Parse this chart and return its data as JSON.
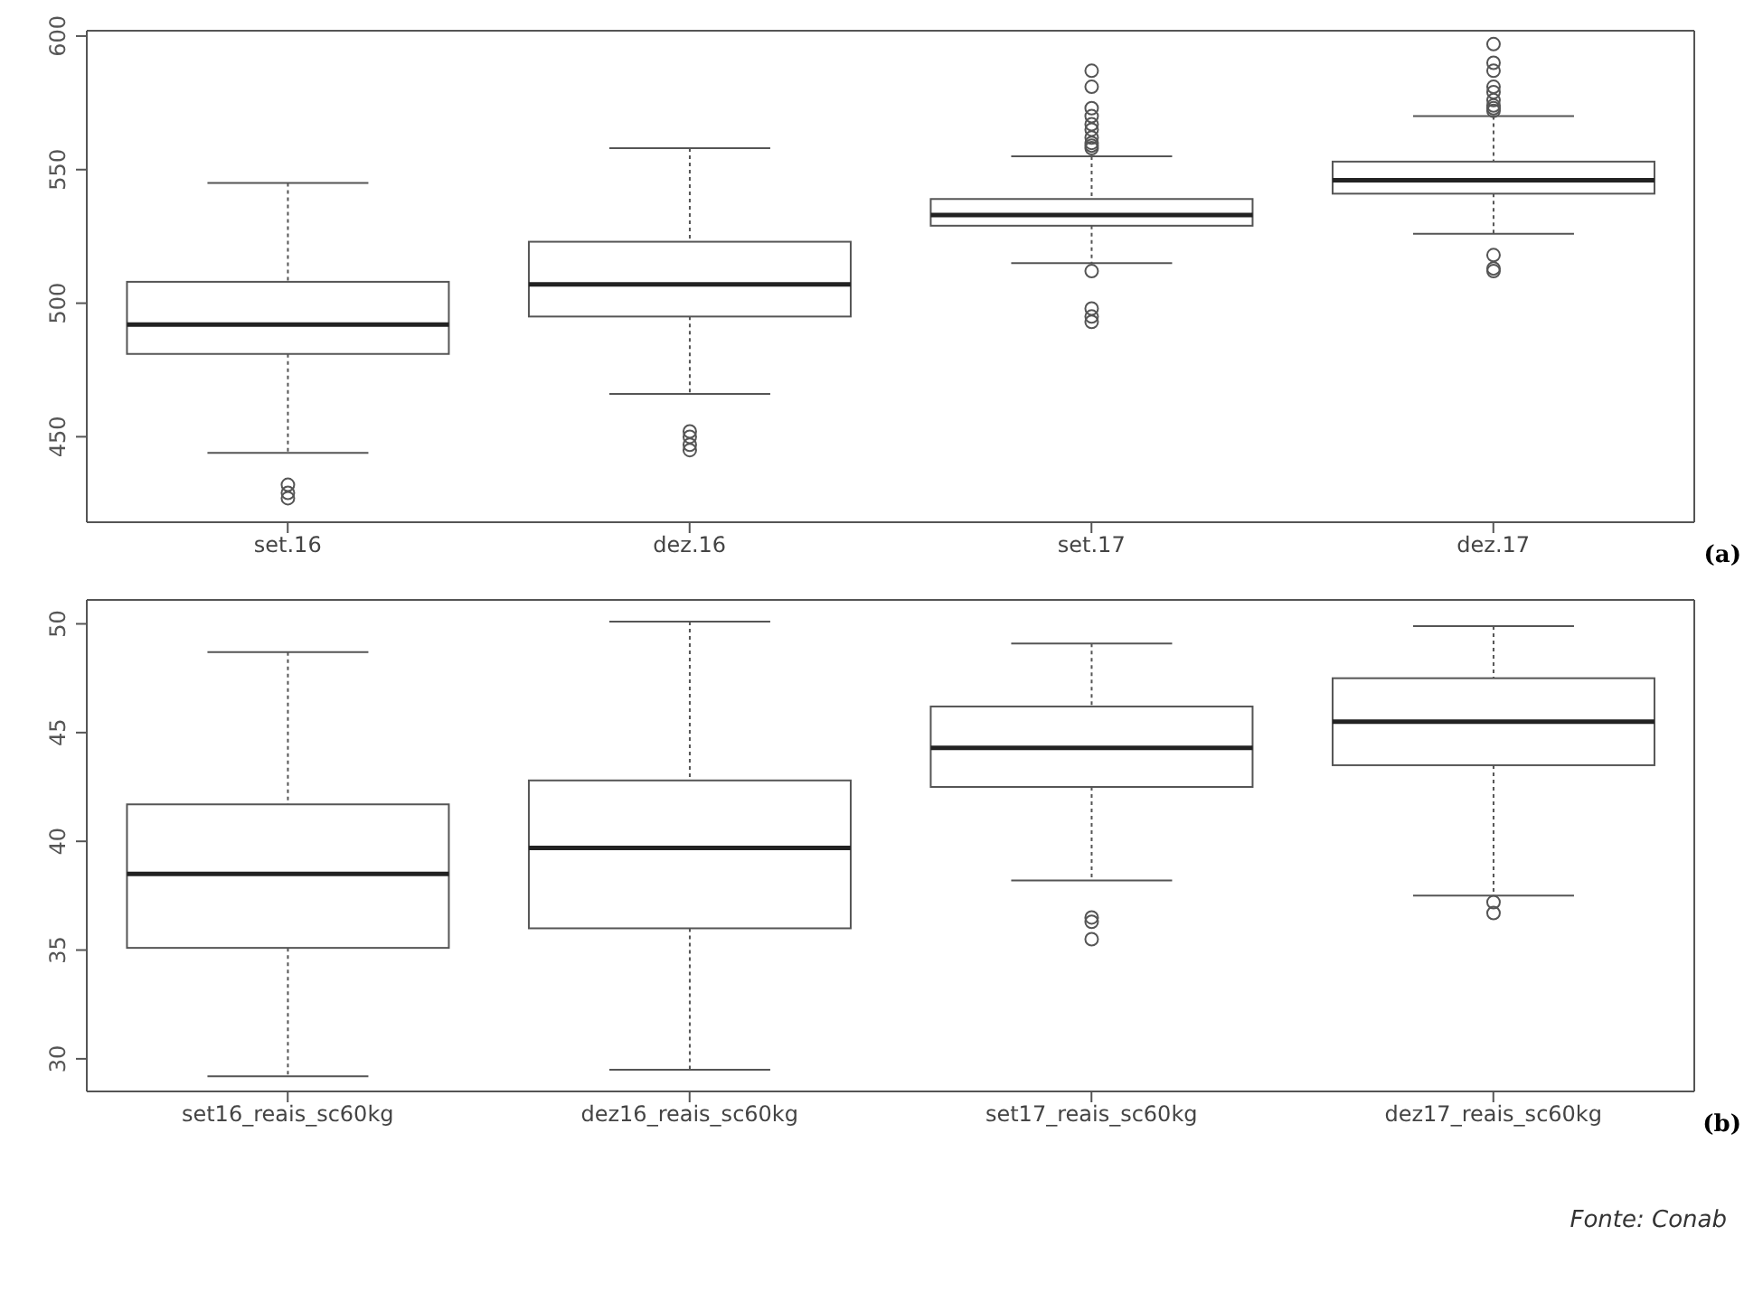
{
  "chart_data": [
    {
      "type": "box",
      "categories": [
        "set.16",
        "dez.16",
        "set.17",
        "dez.17"
      ],
      "boxes": [
        {
          "low": 444,
          "q1": 481,
          "median": 492,
          "q3": 508,
          "high": 545,
          "outliers": [
            427,
            429,
            432
          ]
        },
        {
          "low": 466,
          "q1": 495,
          "median": 507,
          "q3": 523,
          "high": 558,
          "outliers": [
            445,
            447,
            450,
            452
          ]
        },
        {
          "low": 515,
          "q1": 529,
          "median": 533,
          "q3": 539,
          "high": 555,
          "outliers": [
            558,
            559,
            560,
            562,
            565,
            567,
            570,
            573,
            581,
            587,
            512,
            498,
            495,
            493
          ]
        },
        {
          "low": 526,
          "q1": 541,
          "median": 546,
          "q3": 553,
          "high": 570,
          "outliers": [
            572,
            573,
            574,
            576,
            579,
            581,
            587,
            590,
            597,
            518,
            513,
            512
          ]
        }
      ],
      "ylim": [
        418,
        602
      ],
      "yticks": [
        450,
        500,
        550,
        600
      ],
      "annotations": [
        "(a)"
      ]
    },
    {
      "type": "box",
      "categories": [
        "set16_reais_sc60kg",
        "dez16_reais_sc60kg",
        "set17_reais_sc60kg",
        "dez17_reais_sc60kg"
      ],
      "boxes": [
        {
          "low": 29.2,
          "q1": 35.1,
          "median": 38.5,
          "q3": 41.7,
          "high": 48.7
        },
        {
          "low": 29.5,
          "q1": 36.0,
          "median": 39.7,
          "q3": 42.8,
          "high": 50.1
        },
        {
          "low": 38.2,
          "q1": 42.5,
          "median": 44.3,
          "q3": 46.2,
          "high": 49.1,
          "outliers": [
            36.5,
            36.3,
            35.5
          ]
        },
        {
          "low": 37.5,
          "q1": 43.5,
          "median": 45.5,
          "q3": 47.5,
          "high": 49.9,
          "outliers": [
            37.2,
            36.7
          ]
        }
      ],
      "ylim": [
        28.5,
        51.1
      ],
      "yticks": [
        30,
        35,
        40,
        45,
        50
      ],
      "annotations": [
        "(b)",
        "Fonte: Conab"
      ]
    }
  ]
}
